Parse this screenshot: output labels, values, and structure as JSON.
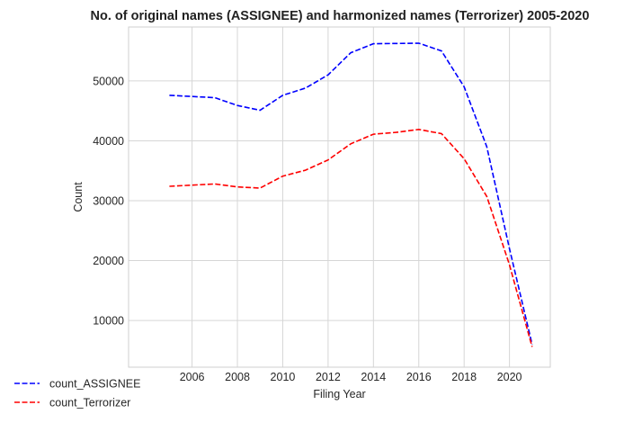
{
  "chart_data": {
    "type": "line",
    "title": "No. of original names (ASSIGNEE) and harmonized names (Terrorizer) 2005-2020",
    "xlabel": "Filing Year",
    "ylabel": "Count",
    "x": [
      2005,
      2006,
      2007,
      2008,
      2009,
      2010,
      2011,
      2012,
      2013,
      2014,
      2015,
      2016,
      2017,
      2018,
      2019,
      2020,
      2021
    ],
    "xticks": [
      2006,
      2008,
      2010,
      2012,
      2014,
      2016,
      2018,
      2020
    ],
    "yticks": [
      10000,
      20000,
      30000,
      40000,
      50000
    ],
    "xlim": [
      2003.2,
      2021.8
    ],
    "ylim": [
      2200,
      59000
    ],
    "grid": true,
    "legend_position": "bottom-left, outside plot",
    "series": [
      {
        "name": "count_ASSIGNEE",
        "color": "#0000ff",
        "linestyle": "dashed",
        "values": [
          47600,
          47400,
          47200,
          45900,
          45100,
          47600,
          48800,
          51000,
          54700,
          56200,
          56250,
          56300,
          55000,
          49000,
          39000,
          22000,
          6000
        ]
      },
      {
        "name": "count_Terrorizer",
        "color": "#ff0000",
        "linestyle": "dashed",
        "values": [
          32400,
          32600,
          32800,
          32300,
          32100,
          34100,
          35100,
          36800,
          39500,
          41100,
          41400,
          41900,
          41200,
          37000,
          30700,
          19300,
          5600
        ]
      }
    ]
  }
}
